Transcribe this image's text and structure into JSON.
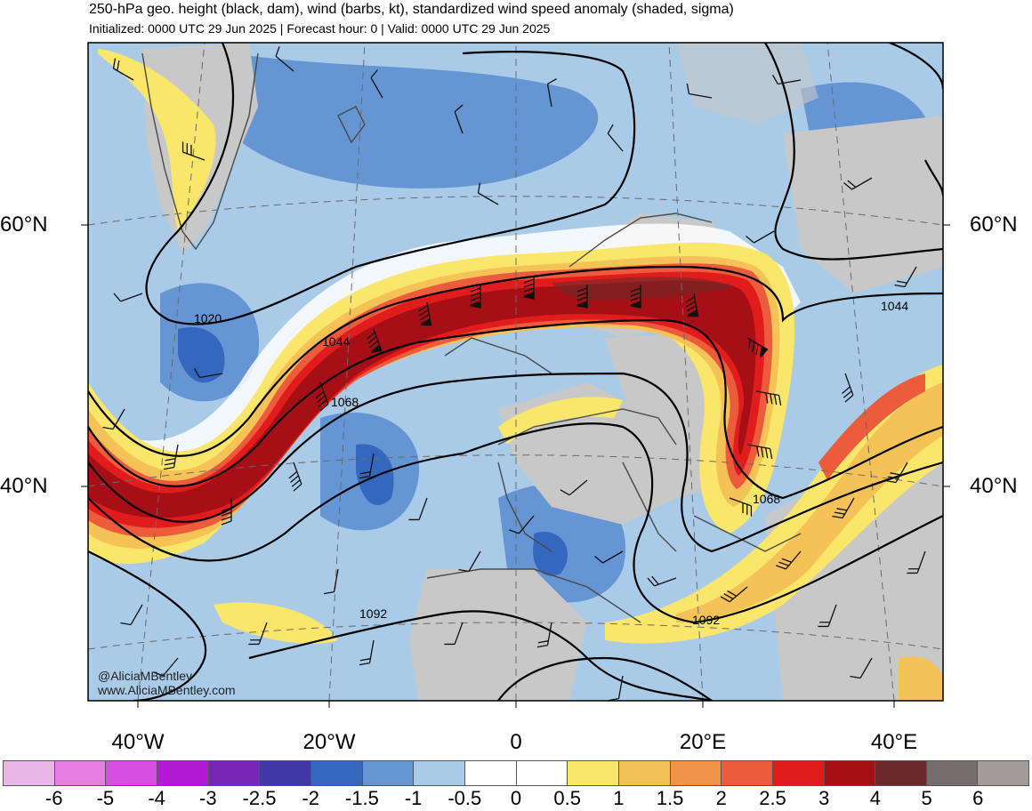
{
  "header": {
    "title": "250-hPa geo. height (black, dam), wind (barbs, kt), standardized wind speed anomaly (shaded, sigma)",
    "subtitle": "Initialized: 0000 UTC 29 Jun 2025 | Forecast hour: 0 | Valid: 0000 UTC 29 Jun 2025"
  },
  "axes": {
    "lat_left": [
      "60°N",
      "40°N"
    ],
    "lat_right": [
      "60°N",
      "40°N"
    ],
    "lon": [
      "40°W",
      "20°W",
      "0",
      "20°E",
      "40°E"
    ]
  },
  "contours": {
    "labels": [
      "1020",
      "1044",
      "1068",
      "1092",
      "1044",
      "1068",
      "1092"
    ],
    "color": "#000000"
  },
  "credits": {
    "handle": "@AliciaMBentley",
    "site": "www.AliciaMBentley.com"
  },
  "colorbar": {
    "ticks": [
      "-6",
      "-5",
      "-4",
      "-3",
      "-2.5",
      "-2",
      "-1.5",
      "-1",
      "-0.5",
      "0",
      "0.5",
      "1",
      "1.5",
      "2",
      "2.5",
      "3",
      "4",
      "5",
      "6"
    ],
    "colors": [
      "#e8b7e6",
      "#e57fe6",
      "#d64fe1",
      "#b419d3",
      "#7926b5",
      "#3e39a7",
      "#3468be",
      "#6695d4",
      "#a9cbe8",
      "#ffffff",
      "#ffffff",
      "#f9e66a",
      "#f4c256",
      "#f0944a",
      "#ec5b3c",
      "#e01d1c",
      "#a50f15",
      "#6e2a2a",
      "#766e6e",
      "#a39a9a"
    ]
  },
  "land_color": "#c8c8c8"
}
